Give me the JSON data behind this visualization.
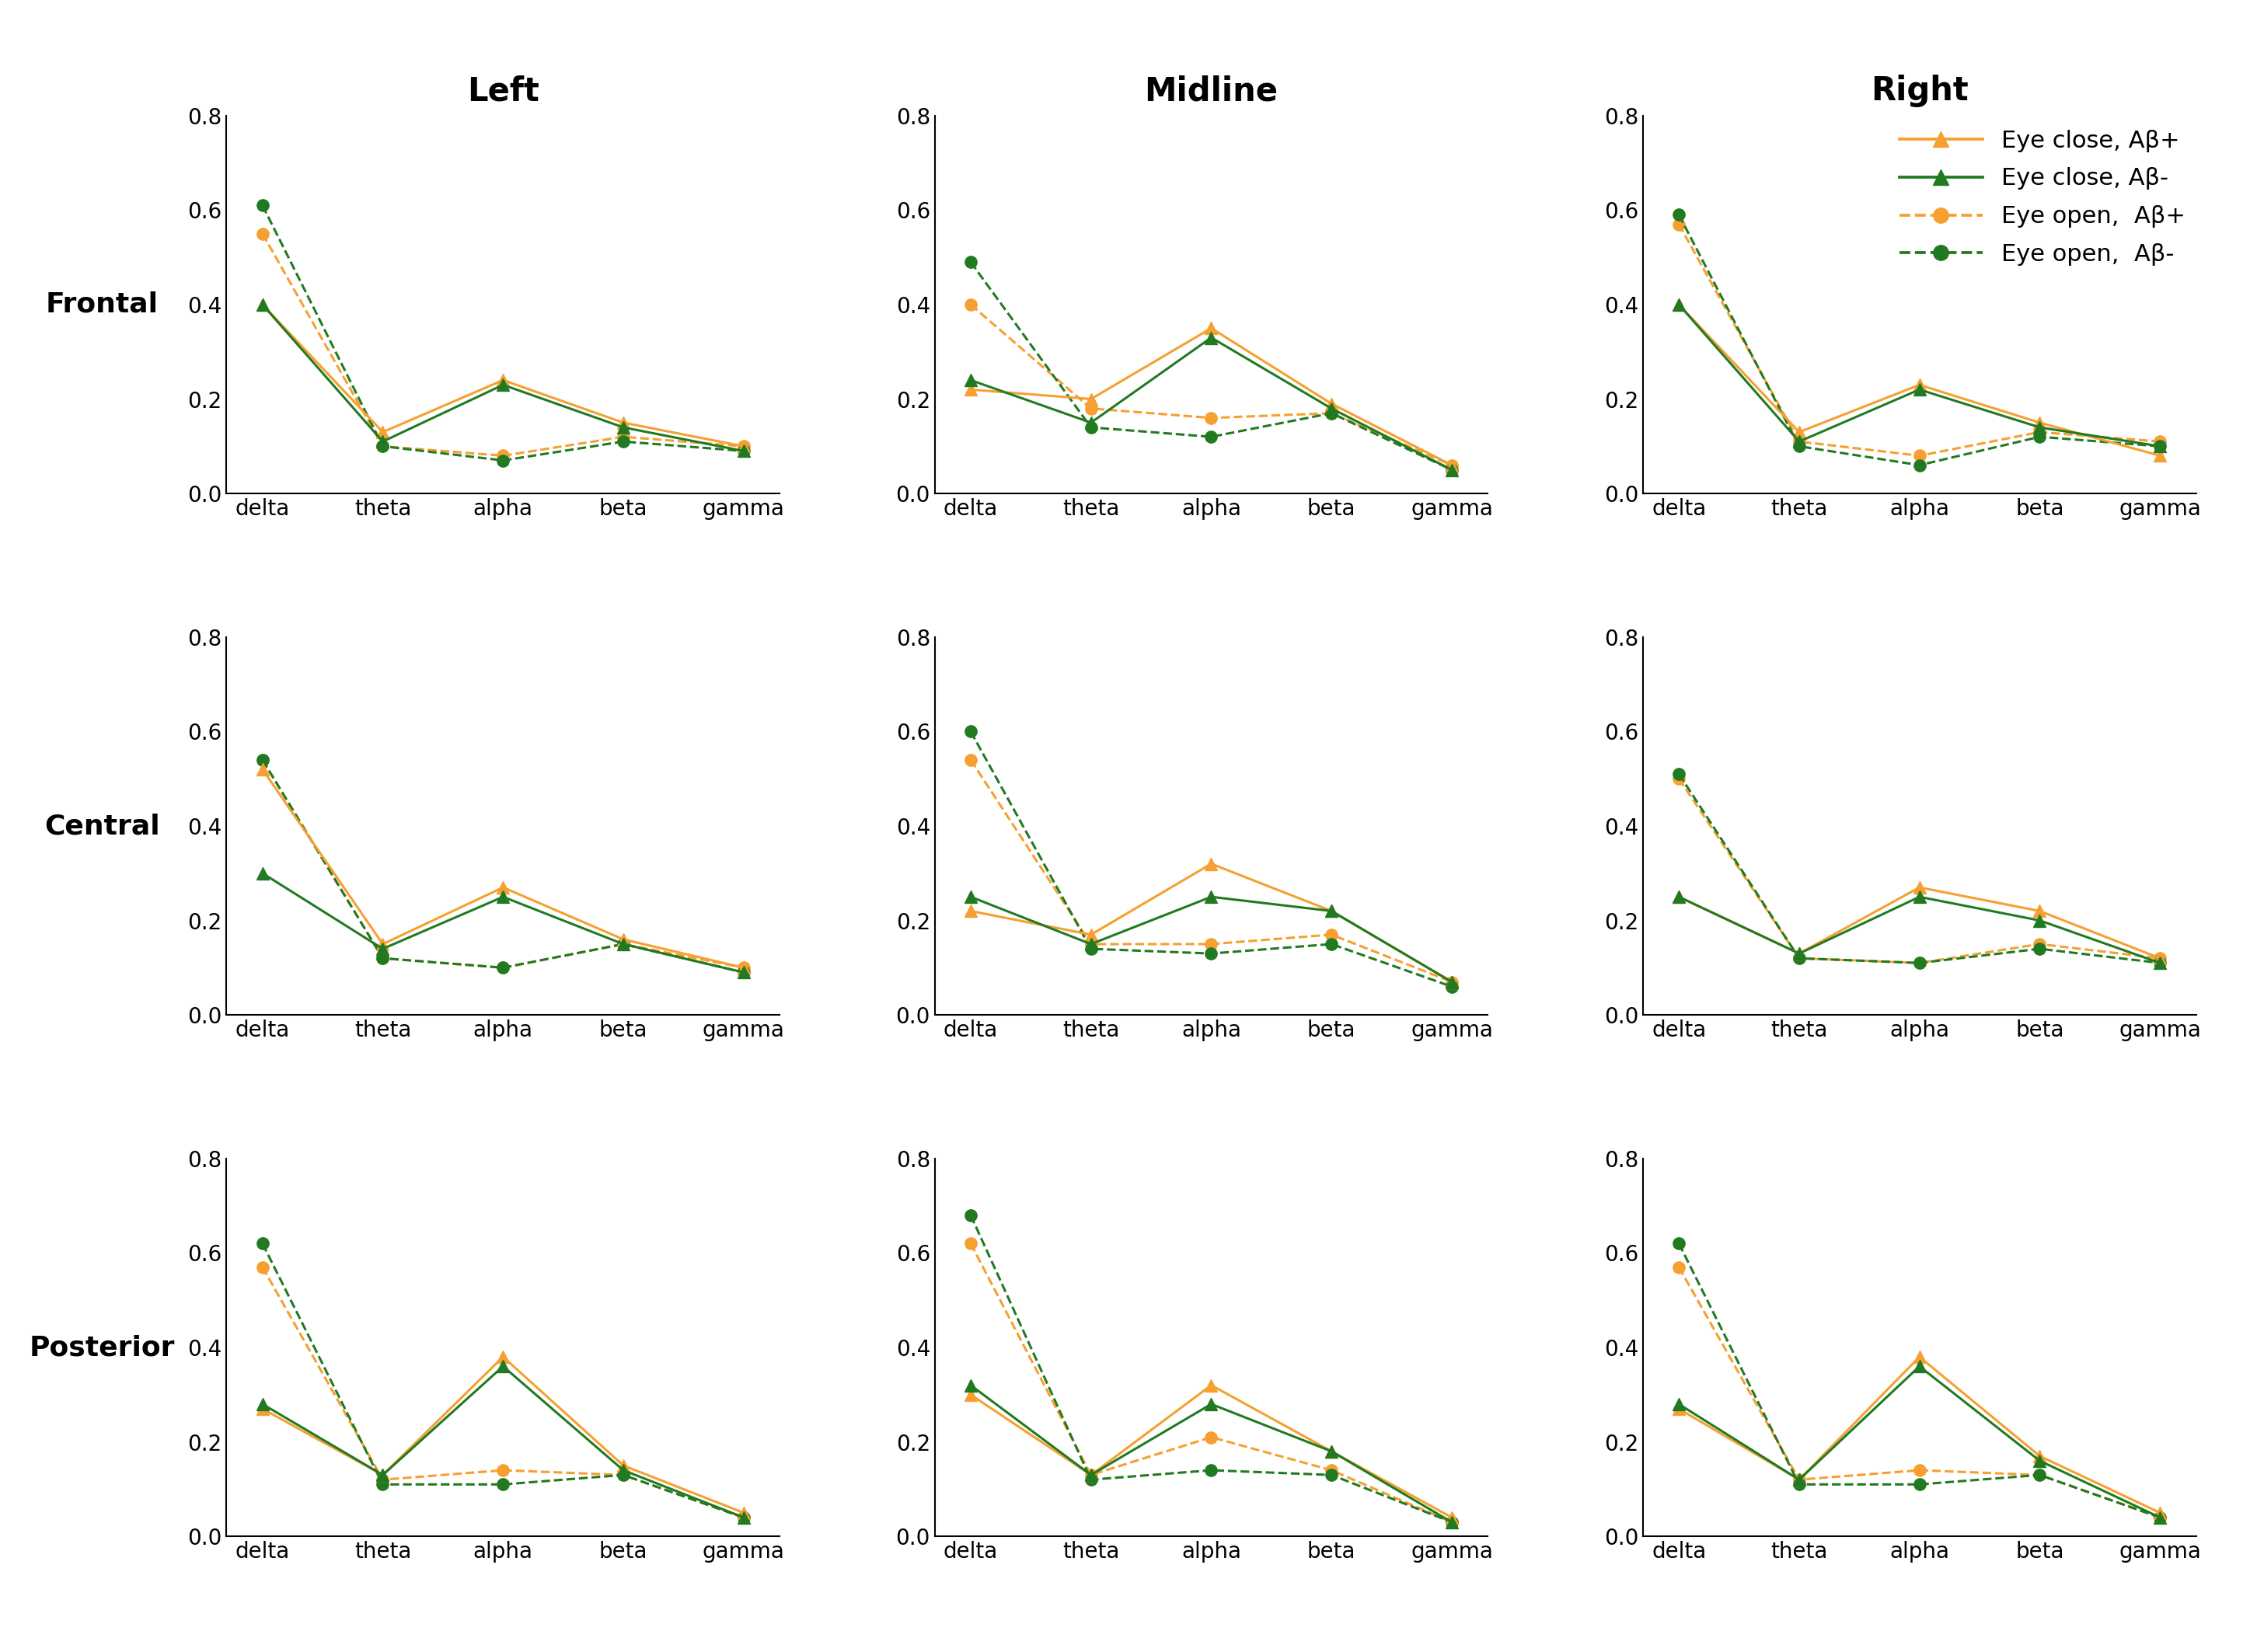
{
  "categories": [
    "delta",
    "theta",
    "alpha",
    "beta",
    "gamma"
  ],
  "col_titles": [
    "Left",
    "Midline",
    "Right"
  ],
  "row_titles": [
    "Frontal",
    "Central",
    "Posterior"
  ],
  "data": {
    "Frontal": {
      "Left": {
        "eye_close_abp": [
          0.4,
          0.13,
          0.24,
          0.15,
          0.1
        ],
        "eye_close_abm": [
          0.4,
          0.11,
          0.23,
          0.14,
          0.09
        ],
        "eye_open_abp": [
          0.55,
          0.1,
          0.08,
          0.12,
          0.1
        ],
        "eye_open_abm": [
          0.61,
          0.1,
          0.07,
          0.11,
          0.09
        ]
      },
      "Midline": {
        "eye_close_abp": [
          0.22,
          0.2,
          0.35,
          0.19,
          0.06
        ],
        "eye_close_abm": [
          0.24,
          0.15,
          0.33,
          0.18,
          0.05
        ],
        "eye_open_abp": [
          0.4,
          0.18,
          0.16,
          0.17,
          0.06
        ],
        "eye_open_abm": [
          0.49,
          0.14,
          0.12,
          0.17,
          0.05
        ]
      },
      "Right": {
        "eye_close_abp": [
          0.4,
          0.13,
          0.23,
          0.15,
          0.08
        ],
        "eye_close_abm": [
          0.4,
          0.11,
          0.22,
          0.14,
          0.1
        ],
        "eye_open_abp": [
          0.57,
          0.11,
          0.08,
          0.13,
          0.11
        ],
        "eye_open_abm": [
          0.59,
          0.1,
          0.06,
          0.12,
          0.1
        ]
      }
    },
    "Central": {
      "Left": {
        "eye_close_abp": [
          0.52,
          0.15,
          0.27,
          0.16,
          0.1
        ],
        "eye_close_abm": [
          0.3,
          0.14,
          0.25,
          0.15,
          0.09
        ],
        "eye_open_abp": [
          0.54,
          0.12,
          0.1,
          0.15,
          0.1
        ],
        "eye_open_abm": [
          0.54,
          0.12,
          0.1,
          0.15,
          0.09
        ]
      },
      "Midline": {
        "eye_close_abp": [
          0.22,
          0.17,
          0.32,
          0.22,
          0.07
        ],
        "eye_close_abm": [
          0.25,
          0.15,
          0.25,
          0.22,
          0.07
        ],
        "eye_open_abp": [
          0.54,
          0.15,
          0.15,
          0.17,
          0.07
        ],
        "eye_open_abm": [
          0.6,
          0.14,
          0.13,
          0.15,
          0.06
        ]
      },
      "Right": {
        "eye_close_abp": [
          0.25,
          0.13,
          0.27,
          0.22,
          0.12
        ],
        "eye_close_abm": [
          0.25,
          0.13,
          0.25,
          0.2,
          0.11
        ],
        "eye_open_abp": [
          0.5,
          0.12,
          0.11,
          0.15,
          0.12
        ],
        "eye_open_abm": [
          0.51,
          0.12,
          0.11,
          0.14,
          0.11
        ]
      }
    },
    "Posterior": {
      "Left": {
        "eye_close_abp": [
          0.27,
          0.13,
          0.38,
          0.15,
          0.05
        ],
        "eye_close_abm": [
          0.28,
          0.13,
          0.36,
          0.14,
          0.04
        ],
        "eye_open_abp": [
          0.57,
          0.12,
          0.14,
          0.13,
          0.04
        ],
        "eye_open_abm": [
          0.62,
          0.11,
          0.11,
          0.13,
          0.04
        ]
      },
      "Midline": {
        "eye_close_abp": [
          0.3,
          0.13,
          0.32,
          0.18,
          0.04
        ],
        "eye_close_abm": [
          0.32,
          0.13,
          0.28,
          0.18,
          0.03
        ],
        "eye_open_abp": [
          0.62,
          0.13,
          0.21,
          0.14,
          0.03
        ],
        "eye_open_abm": [
          0.68,
          0.12,
          0.14,
          0.13,
          0.03
        ]
      },
      "Right": {
        "eye_close_abp": [
          0.27,
          0.12,
          0.38,
          0.17,
          0.05
        ],
        "eye_close_abm": [
          0.28,
          0.12,
          0.36,
          0.16,
          0.04
        ],
        "eye_open_abp": [
          0.57,
          0.12,
          0.14,
          0.13,
          0.04
        ],
        "eye_open_abm": [
          0.62,
          0.11,
          0.11,
          0.13,
          0.04
        ]
      }
    }
  },
  "legend_labels": [
    "Eye close, Aβ+",
    "Eye close, Aβ-",
    "Eye open,  Aβ+",
    "Eye open,  Aβ-"
  ],
  "ylim": [
    0.0,
    0.8
  ],
  "yticks": [
    0.0,
    0.2,
    0.4,
    0.6,
    0.8
  ],
  "orange_color": "#F5A030",
  "green_color": "#217A21",
  "col_title_fontsize": 30,
  "row_label_fontsize": 26,
  "tick_fontsize": 20,
  "legend_fontsize": 22,
  "marker_size": 11,
  "line_width": 2.2
}
